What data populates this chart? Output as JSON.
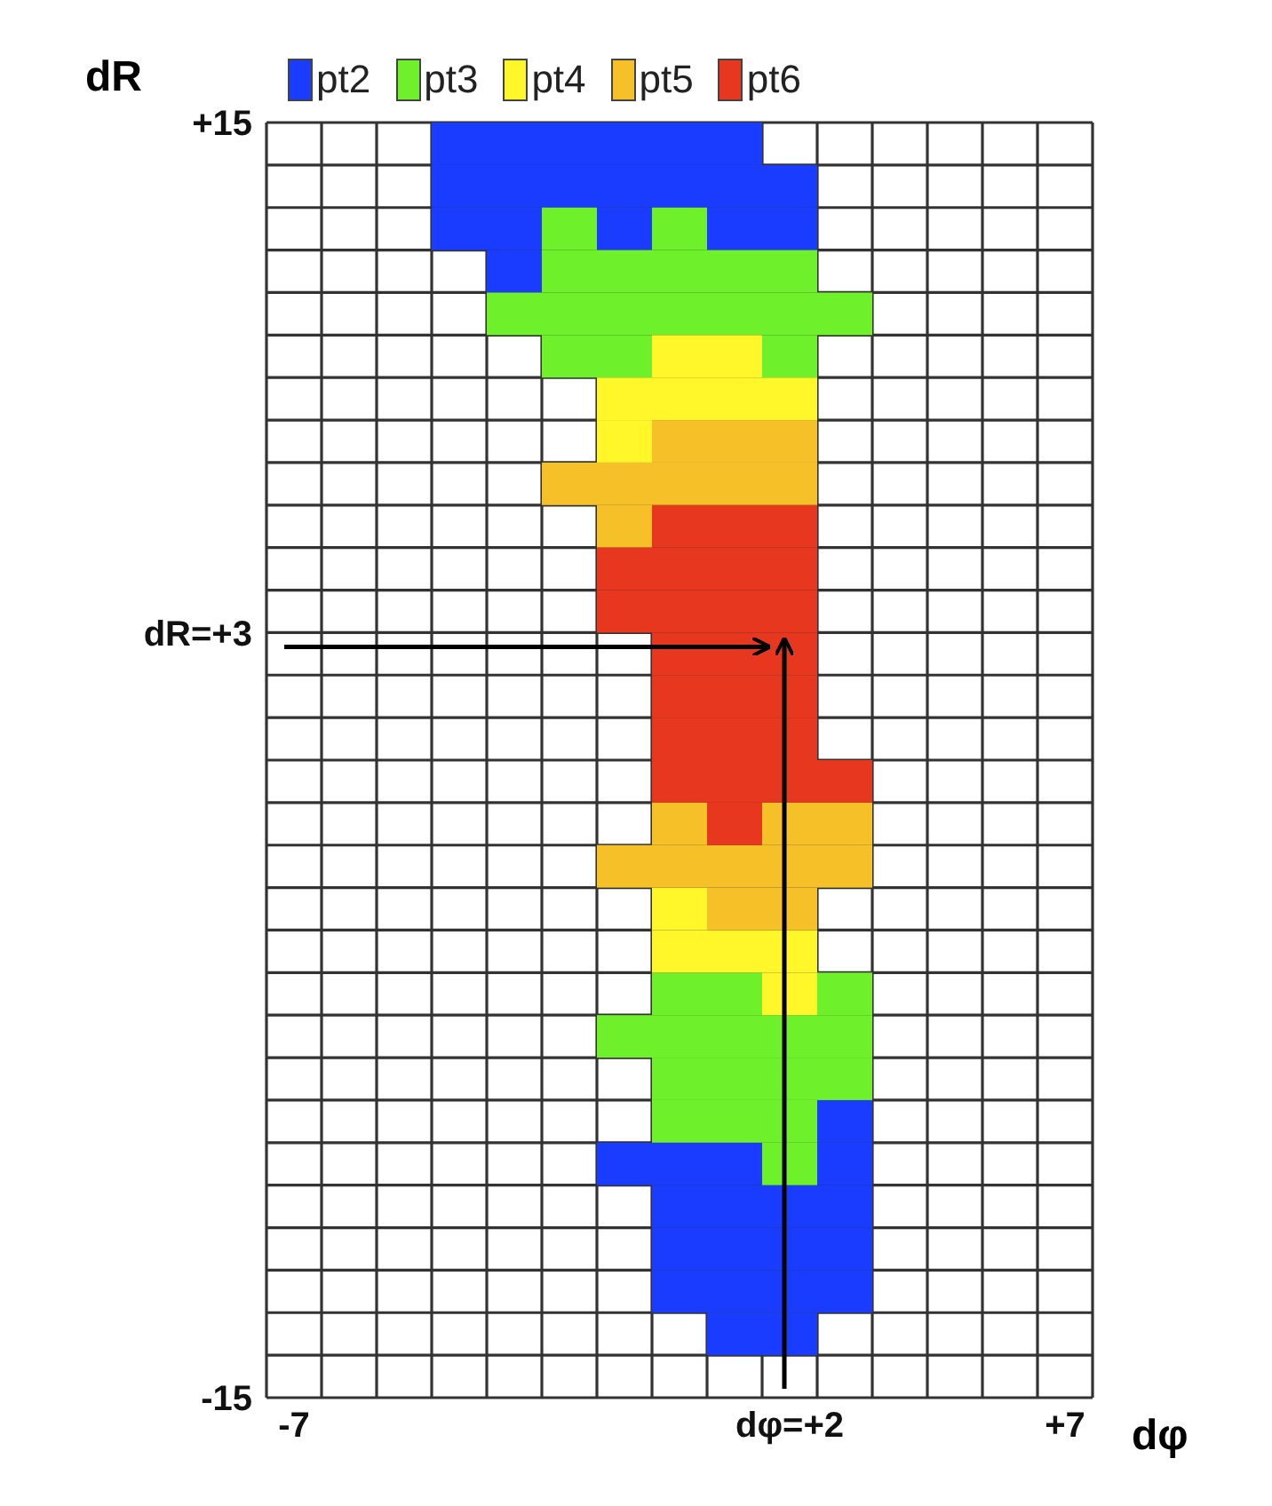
{
  "chart_data": {
    "type": "scatter",
    "marker": "square",
    "xlabel": "dφ",
    "ylabel": "dR",
    "xlim": [
      -7.5,
      7.5
    ],
    "ylim": [
      -15,
      15
    ],
    "xticks": [
      {
        "value": -7,
        "label": "-7"
      },
      {
        "value": 2,
        "label": "dφ=+2"
      },
      {
        "value": 7,
        "label": "+7"
      }
    ],
    "yticks": [
      {
        "value": 15,
        "label": "+15"
      },
      {
        "value": 3,
        "label": "dR=+3"
      },
      {
        "value": -15,
        "label": "-15"
      }
    ],
    "grid": true,
    "legend": "top",
    "series": [
      {
        "name": "pt2",
        "color": "#1a3cff",
        "x": [
          -4,
          -3,
          -2,
          -1,
          0,
          1,
          -4,
          -3,
          -2,
          -1,
          0,
          1,
          2,
          -4,
          -3,
          -1,
          1,
          2,
          -3,
          3,
          -1,
          0,
          1,
          3,
          0,
          1,
          2,
          3,
          0,
          1,
          2,
          3,
          0,
          1,
          2,
          3,
          1,
          2
        ],
        "values": [
          14.5,
          14.5,
          14.5,
          14.5,
          14.5,
          14.5,
          13.5,
          13.5,
          13.5,
          13.5,
          13.5,
          13.5,
          13.5,
          12.5,
          12.5,
          12.5,
          12.5,
          12.5,
          11.5,
          -8.5,
          -9.5,
          -9.5,
          -9.5,
          -9.5,
          -10.5,
          -10.5,
          -10.5,
          -10.5,
          -11.5,
          -11.5,
          -11.5,
          -11.5,
          -12.5,
          -12.5,
          -12.5,
          -12.5,
          -13.5,
          -13.5
        ]
      },
      {
        "name": "pt3",
        "color": "#6ef02a",
        "x": [
          -2,
          0,
          -2,
          -1,
          0,
          1,
          2,
          -3,
          -2,
          -1,
          0,
          1,
          2,
          3,
          -2,
          -1,
          2,
          0,
          1,
          3,
          -1,
          0,
          1,
          2,
          3,
          0,
          1,
          2,
          3,
          0,
          1,
          2,
          2
        ],
        "values": [
          12.5,
          12.5,
          11.5,
          11.5,
          11.5,
          11.5,
          11.5,
          10.5,
          10.5,
          10.5,
          10.5,
          10.5,
          10.5,
          10.5,
          9.5,
          9.5,
          9.5,
          -5.5,
          -5.5,
          -5.5,
          -6.5,
          -6.5,
          -6.5,
          -6.5,
          -6.5,
          -7.5,
          -7.5,
          -7.5,
          -7.5,
          -8.5,
          -8.5,
          -8.5,
          -9.5
        ]
      },
      {
        "name": "pt4",
        "color": "#fff72a",
        "x": [
          0,
          1,
          -1,
          0,
          1,
          2,
          -1,
          0,
          0,
          1,
          2,
          2
        ],
        "values": [
          9.5,
          9.5,
          8.5,
          8.5,
          8.5,
          8.5,
          7.5,
          -3.5,
          -4.5,
          -4.5,
          -4.5,
          -5.5
        ]
      },
      {
        "name": "pt5",
        "color": "#f5c028",
        "x": [
          0,
          1,
          2,
          -2,
          -1,
          0,
          1,
          2,
          -1,
          0,
          2,
          3,
          -1,
          0,
          1,
          2,
          3,
          1,
          2
        ],
        "values": [
          7.5,
          7.5,
          7.5,
          6.5,
          6.5,
          6.5,
          6.5,
          6.5,
          5.5,
          -1.5,
          -1.5,
          -1.5,
          -2.5,
          -2.5,
          -2.5,
          -2.5,
          -2.5,
          -3.5,
          -3.5
        ]
      },
      {
        "name": "pt6",
        "color": "#e8371f",
        "x": [
          0,
          1,
          2,
          -1,
          0,
          1,
          2,
          -1,
          0,
          1,
          2,
          0,
          1,
          2,
          0,
          1,
          2,
          0,
          1,
          2,
          0,
          1,
          2,
          3,
          1
        ],
        "values": [
          5.5,
          5.5,
          5.5,
          4.5,
          4.5,
          4.5,
          4.5,
          3.5,
          3.5,
          3.5,
          3.5,
          2.5,
          2.5,
          2.5,
          1.5,
          1.5,
          1.5,
          0.5,
          0.5,
          0.5,
          -0.5,
          -0.5,
          -0.5,
          -0.5,
          -1.5
        ]
      }
    ]
  }
}
